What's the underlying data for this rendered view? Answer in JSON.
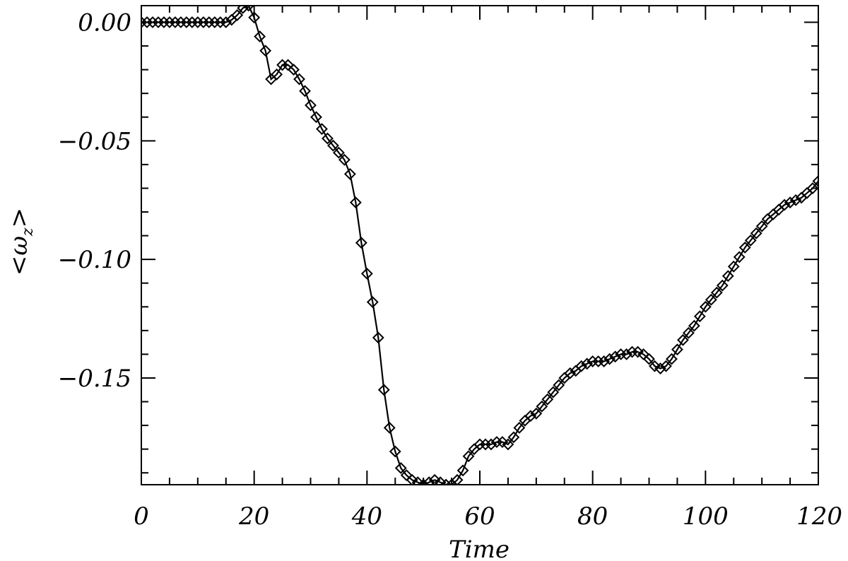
{
  "chart_data": {
    "type": "line",
    "title": "",
    "xlabel": "Time",
    "ylabel": "<ωz>",
    "ylabel_parts": {
      "left": "<",
      "symbol": "ω",
      "subscript": "z",
      "right": ">"
    },
    "xlim": [
      0,
      120
    ],
    "ylim": [
      -0.195,
      0.007
    ],
    "x_ticks": [
      0,
      20,
      40,
      60,
      80,
      100,
      120
    ],
    "x_tick_labels": [
      "0",
      "20",
      "40",
      "60",
      "80",
      "100",
      "120"
    ],
    "x_minor_step": 5,
    "y_ticks": [
      0.0,
      -0.05,
      -0.1,
      -0.15
    ],
    "y_tick_labels": [
      "0.00",
      "−0.05",
      "−0.10",
      "−0.15"
    ],
    "y_minor_step": 0.01,
    "grid": false,
    "marker": "diamond",
    "colors": {
      "line": "#000000",
      "axes": "#000000",
      "background": "#ffffff"
    },
    "series": [
      {
        "x": [
          0,
          1,
          2,
          3,
          4,
          5,
          6,
          7,
          8,
          9,
          10,
          11,
          12,
          13,
          14,
          15,
          16,
          17,
          18,
          19,
          20,
          21,
          22,
          23,
          24,
          25,
          26,
          27,
          28,
          29,
          30,
          31,
          32,
          33,
          34,
          35,
          36,
          37,
          38,
          39,
          40,
          41,
          42,
          43,
          44,
          45,
          46,
          47,
          48,
          49,
          50,
          51,
          52,
          53,
          54,
          55,
          56,
          57,
          58,
          59,
          60,
          61,
          62,
          63,
          64,
          65,
          66,
          67,
          68,
          69,
          70,
          71,
          72,
          73,
          74,
          75,
          76,
          77,
          78,
          79,
          80,
          81,
          82,
          83,
          84,
          85,
          86,
          87,
          88,
          89,
          90,
          91,
          92,
          93,
          94,
          95,
          96,
          97,
          98,
          99,
          100,
          101,
          102,
          103,
          104,
          105,
          106,
          107,
          108,
          109,
          110,
          111,
          112,
          113,
          114,
          115,
          116,
          117,
          118,
          119,
          120
        ],
        "y": [
          0.0,
          0.0,
          0.0,
          0.0,
          0.0,
          0.0,
          0.0,
          0.0,
          0.0,
          0.0,
          0.0,
          0.0,
          0.0,
          0.0,
          0.0,
          0.0,
          0.001,
          0.003,
          0.006,
          0.007,
          0.002,
          -0.006,
          -0.012,
          -0.024,
          -0.022,
          -0.018,
          -0.018,
          -0.02,
          -0.024,
          -0.029,
          -0.035,
          -0.04,
          -0.045,
          -0.049,
          -0.052,
          -0.055,
          -0.058,
          -0.064,
          -0.076,
          -0.093,
          -0.106,
          -0.118,
          -0.133,
          -0.155,
          -0.171,
          -0.181,
          -0.188,
          -0.191,
          -0.193,
          -0.194,
          -0.195,
          -0.194,
          -0.193,
          -0.194,
          -0.195,
          -0.195,
          -0.193,
          -0.189,
          -0.183,
          -0.18,
          -0.178,
          -0.178,
          -0.178,
          -0.177,
          -0.177,
          -0.178,
          -0.175,
          -0.171,
          -0.168,
          -0.166,
          -0.165,
          -0.162,
          -0.159,
          -0.156,
          -0.153,
          -0.15,
          -0.148,
          -0.147,
          -0.145,
          -0.144,
          -0.143,
          -0.143,
          -0.143,
          -0.142,
          -0.141,
          -0.14,
          -0.14,
          -0.139,
          -0.139,
          -0.14,
          -0.142,
          -0.145,
          -0.146,
          -0.145,
          -0.142,
          -0.138,
          -0.134,
          -0.131,
          -0.128,
          -0.124,
          -0.12,
          -0.117,
          -0.114,
          -0.111,
          -0.107,
          -0.103,
          -0.099,
          -0.095,
          -0.092,
          -0.089,
          -0.086,
          -0.083,
          -0.081,
          -0.079,
          -0.077,
          -0.076,
          -0.075,
          -0.074,
          -0.072,
          -0.07,
          -0.067
        ]
      }
    ]
  }
}
